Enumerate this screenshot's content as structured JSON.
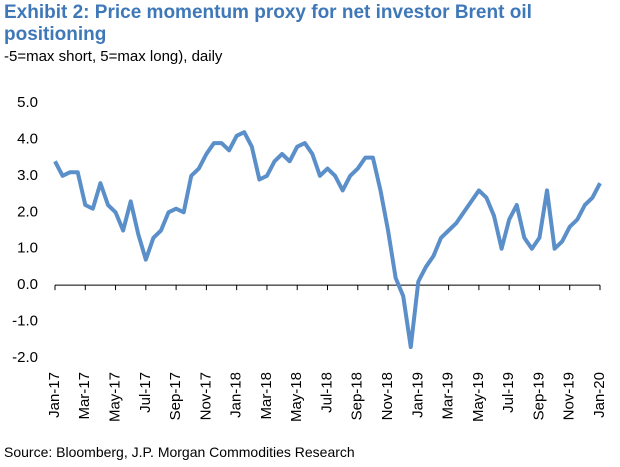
{
  "chart_data": {
    "type": "line",
    "title": "Exhibit 2: Price momentum proxy for net investor Brent oil positioning",
    "subtitle": "-5=max short, 5=max long), daily",
    "source": "Source: Bloomberg, J.P. Morgan Commodities Research",
    "categories": [
      "Jan-17",
      null,
      null,
      null,
      "Mar-17",
      null,
      null,
      null,
      "May-17",
      null,
      null,
      null,
      "Jul-17",
      null,
      null,
      null,
      "Sep-17",
      null,
      null,
      null,
      "Nov-17",
      null,
      null,
      null,
      "Jan-18",
      null,
      null,
      null,
      "Mar-18",
      null,
      null,
      null,
      "May-18",
      null,
      null,
      null,
      "Jul-18",
      null,
      null,
      null,
      "Sep-18",
      null,
      null,
      null,
      "Nov-18",
      null,
      null,
      null,
      "Jan-19",
      null,
      null,
      null,
      "Mar-19",
      null,
      null,
      null,
      "May-19",
      null,
      null,
      null,
      "Jul-19",
      null,
      null,
      null,
      "Sep-19",
      null,
      null,
      null,
      "Nov-19",
      null,
      null,
      null,
      "Jan-20"
    ],
    "series": [
      {
        "name": "Price momentum proxy",
        "color": "#5b8fc9",
        "values": [
          3.4,
          3.0,
          3.1,
          3.1,
          2.2,
          2.1,
          2.8,
          2.2,
          2.0,
          1.5,
          2.3,
          1.4,
          0.7,
          1.3,
          1.5,
          2.0,
          2.1,
          2.0,
          3.0,
          3.2,
          3.6,
          3.9,
          3.9,
          3.7,
          4.1,
          4.2,
          3.8,
          2.9,
          3.0,
          3.4,
          3.6,
          3.4,
          3.8,
          3.9,
          3.6,
          3.0,
          3.2,
          3.0,
          2.6,
          3.0,
          3.2,
          3.5,
          3.5,
          2.6,
          1.5,
          0.2,
          -0.3,
          -1.7,
          0.1,
          0.5,
          0.8,
          1.3,
          1.5,
          1.7,
          2.0,
          2.3,
          2.6,
          2.4,
          1.9,
          1.0,
          1.8,
          2.2,
          1.3,
          1.0,
          1.3,
          2.6,
          1.0,
          1.2,
          1.6,
          1.8,
          2.2,
          2.4,
          2.8
        ]
      }
    ],
    "ylim": [
      -2,
      5
    ],
    "yticks": [
      {
        "value": -2,
        "label": "-2.0"
      },
      {
        "value": -1,
        "label": "-1.0"
      },
      {
        "value": 0,
        "label": "0.0"
      },
      {
        "value": 1,
        "label": "1.0"
      },
      {
        "value": 2,
        "label": "2.0"
      },
      {
        "value": 3,
        "label": "3.0"
      },
      {
        "value": 4,
        "label": "4.0"
      },
      {
        "value": 5,
        "label": "5.0"
      }
    ],
    "grid": false
  }
}
